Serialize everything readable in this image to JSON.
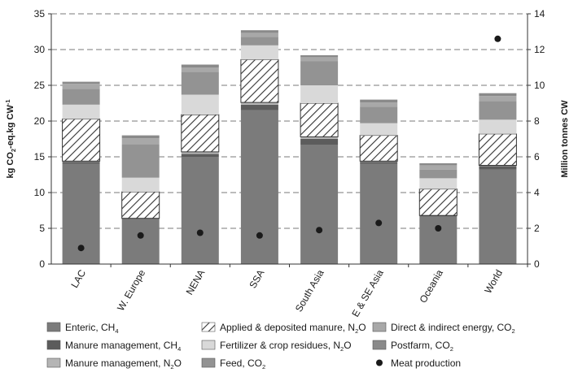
{
  "chart_data": {
    "type": "bar",
    "stacked": true,
    "categories": [
      "LAC",
      "W. Europe",
      "NENA",
      "SSA",
      "South Asia",
      "E & SE Asia",
      "Oceania",
      "World"
    ],
    "ylabel_left": [
      "kg CO",
      "2",
      "-eq.kg CW",
      "-1"
    ],
    "ylabel_right": "Million tonnes CW",
    "ylim_left": [
      0,
      35
    ],
    "yticks_left": [
      0,
      5,
      10,
      15,
      20,
      25,
      30,
      35
    ],
    "ylim_right": [
      0,
      14
    ],
    "yticks_right": [
      0,
      2,
      4,
      6,
      8,
      10,
      12,
      14
    ],
    "grid": "dashed horizontal",
    "legend_position": "bottom",
    "series": [
      {
        "name": [
          "Enteric, CH",
          "4",
          ""
        ],
        "color": "#7b7b7b",
        "pattern": "none",
        "values": [
          14.0,
          6.3,
          15.0,
          21.5,
          16.7,
          14.0,
          6.7,
          13.2
        ]
      },
      {
        "name": [
          "Manure management, CH",
          "4",
          ""
        ],
        "color": "#5c5c5c",
        "pattern": "none",
        "values": [
          0.3,
          0.1,
          0.4,
          0.8,
          0.8,
          0.3,
          0.1,
          0.5
        ]
      },
      {
        "name": [
          "Manure management, N",
          "2",
          "O"
        ],
        "color": "#b5b5b5",
        "pattern": "none",
        "values": [
          0.1,
          0.0,
          0.3,
          0.3,
          0.3,
          0.1,
          0.0,
          0.1
        ]
      },
      {
        "name": [
          "Applied & deposited manure, N",
          "2",
          "O"
        ],
        "color": "#ffffff",
        "pattern": "hatch",
        "values": [
          5.9,
          3.7,
          5.2,
          6.0,
          4.7,
          3.6,
          3.7,
          4.4
        ]
      },
      {
        "name": [
          "Fertilizer & crop residues, N",
          "2",
          "O"
        ],
        "color": "#d9d9d9",
        "pattern": "none",
        "values": [
          2.0,
          2.0,
          2.8,
          2.0,
          2.5,
          1.7,
          1.5,
          2.0
        ]
      },
      {
        "name": [
          "Feed, CO",
          "2",
          ""
        ],
        "color": "#939393",
        "pattern": "none",
        "values": [
          2.2,
          4.7,
          3.2,
          1.2,
          3.4,
          2.3,
          1.2,
          2.6
        ]
      },
      {
        "name": [
          "Direct & indirect energy, CO",
          "2",
          ""
        ],
        "color": "#a8a8a8",
        "pattern": "none",
        "values": [
          0.7,
          0.8,
          0.6,
          0.5,
          0.5,
          0.6,
          0.6,
          0.7
        ]
      },
      {
        "name": [
          "Postfarm, CO",
          "2",
          ""
        ],
        "color": "#8a8a8a",
        "pattern": "none",
        "values": [
          0.3,
          0.4,
          0.4,
          0.4,
          0.3,
          0.4,
          0.3,
          0.4
        ]
      }
    ],
    "secondary_series": {
      "name": [
        "Meat production",
        "",
        ""
      ],
      "type": "scatter",
      "axis": "right",
      "color": "#1a1a1a",
      "values": [
        0.9,
        1.6,
        1.75,
        1.6,
        1.9,
        2.3,
        2.0,
        12.6
      ]
    }
  }
}
